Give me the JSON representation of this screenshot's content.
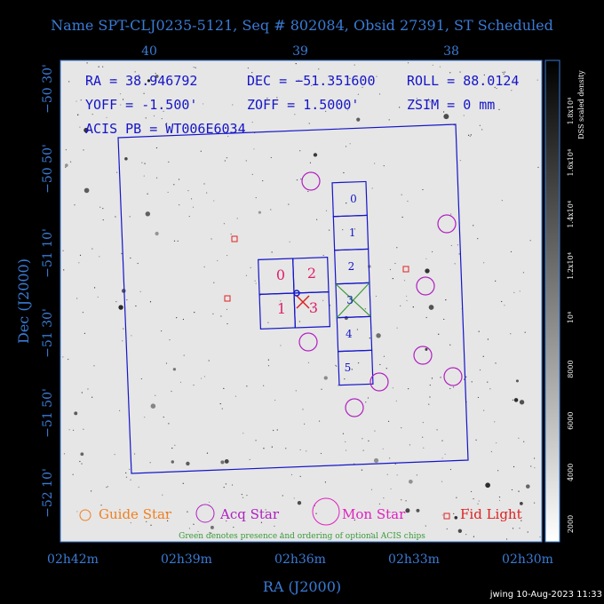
{
  "title": "Name SPT-CLJ0235-5121, Seq # 802084, Obsid 27391, ST Scheduled",
  "info": [
    "RA = 38.946792",
    "DEC = −51.351600",
    "ROLL = 88.0124",
    "YOFF = -1.500'",
    "ZOFF = 1.5000'",
    "ZSIM = 0 mm",
    "ACIS PB = WT006E6034"
  ],
  "top_axis": [
    "40",
    "39",
    "38"
  ],
  "left_axis": [
    "−50 30'",
    "−50 50'",
    "−51 10'",
    "−51 30'",
    "−51 50'",
    "−52 10'"
  ],
  "left_axis_title": "Dec (J2000)",
  "bottom_axis": [
    "02h42m",
    "02h39m",
    "02h36m",
    "02h33m",
    "02h30m"
  ],
  "bottom_axis_title": "RA (J2000)",
  "legend": [
    "Guide Star",
    "Acq Star",
    "Mon Star",
    "Fid Light"
  ],
  "note": "Green denotes presence and ordering of optional ACIS chips",
  "s_chips": [
    "0",
    "1",
    "2",
    "3",
    "4",
    "5"
  ],
  "i_chips": [
    "0",
    "2",
    "1",
    "3"
  ],
  "colorbar": {
    "title": "DSS scaled density",
    "labels": [
      "2000",
      "4000",
      "6000",
      "8000",
      "10⁴",
      "1.2x10⁴",
      "1.4x10⁴",
      "1.6x10⁴",
      "1.8x10⁴"
    ]
  },
  "footer": "jwing 10-Aug-2023 11:33"
}
